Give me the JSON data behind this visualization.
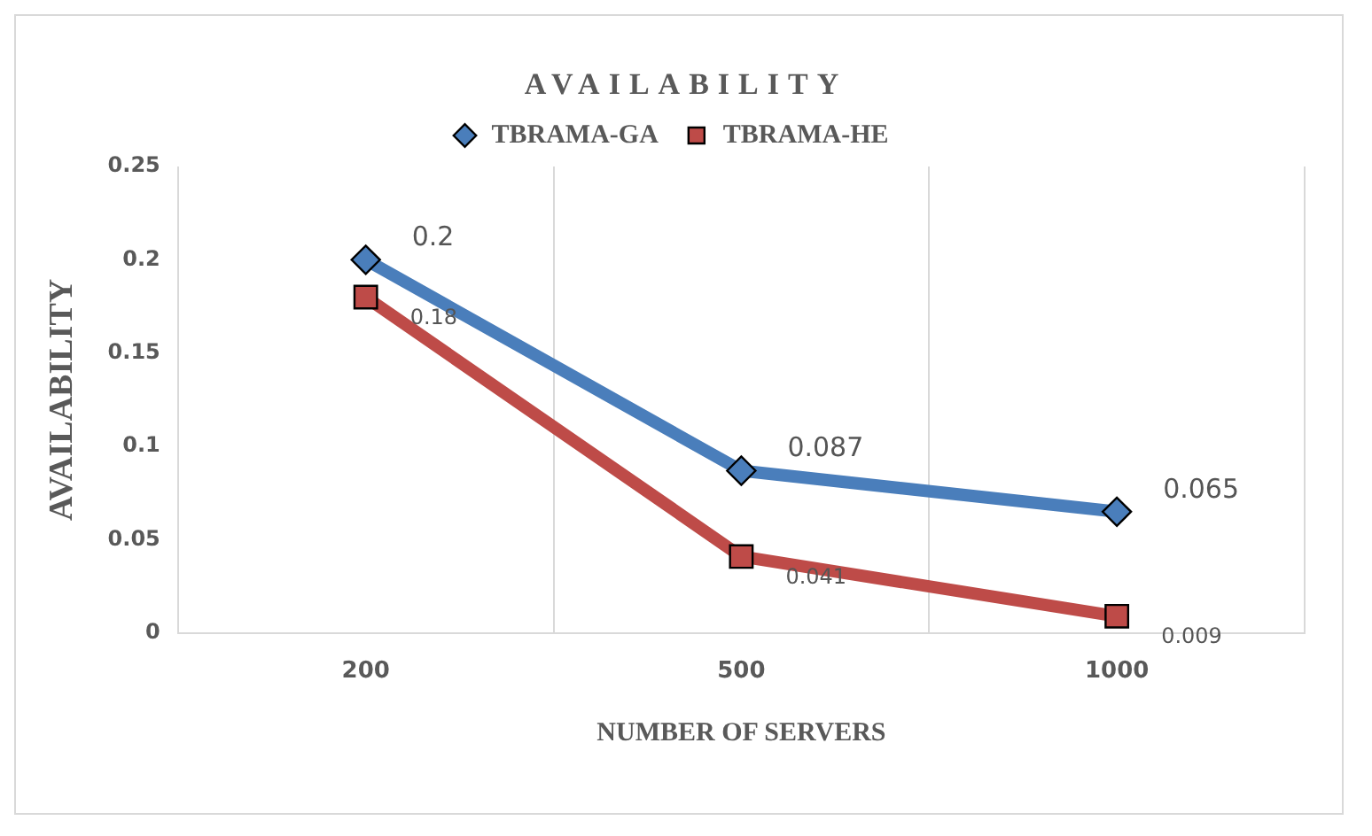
{
  "chart_data": {
    "type": "line",
    "title": "AVAILABILITY",
    "xlabel": "NUMBER OF SERVERS",
    "ylabel": "AVAILABILITY",
    "categories": [
      "200",
      "500",
      "1000"
    ],
    "series": [
      {
        "name": "TBRAMA-GA",
        "color": "#4a7ebb",
        "values": [
          0.2,
          0.087,
          0.065
        ],
        "marker": "diamond"
      },
      {
        "name": "TBRAMA-HE",
        "color": "#be4b48",
        "values": [
          0.18,
          0.041,
          0.009
        ],
        "marker": "square"
      }
    ],
    "ylim": [
      0,
      0.25
    ],
    "yticks": [
      0,
      0.05,
      0.1,
      0.15,
      0.2,
      0.25
    ],
    "grid": "x",
    "legend": "top",
    "data_labels": true
  }
}
